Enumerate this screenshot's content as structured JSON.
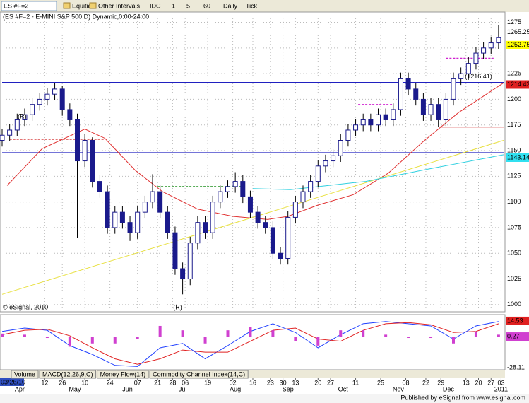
{
  "toolbar": {
    "symbol": "ES #F=2",
    "items": [
      "Equities",
      "Other Intervals",
      "IDC",
      "1",
      "5",
      "60",
      "Daily",
      "Tick"
    ]
  },
  "chart_data": [
    {
      "type": "candlestick",
      "title": "(ES #F=2 - E-MINI S&P 500,D) Dynamic,0:00-24:00",
      "watermark": "© eSignal, 2010",
      "start_label": "03/26/10",
      "xlim": [
        0,
        200
      ],
      "ylim": [
        993,
        1285
      ],
      "yticks": [
        1000,
        1025,
        1050,
        1075,
        1100,
        1125,
        1150,
        1175,
        1200,
        1225,
        1250,
        1275
      ],
      "xticks": [
        {
          "value": 17,
          "label": "12"
        },
        {
          "value": 24,
          "label": "26"
        },
        {
          "value": 33,
          "label": "10"
        },
        {
          "value": 43,
          "label": "24"
        },
        {
          "value": 54,
          "label": "07"
        },
        {
          "value": 62,
          "label": "21"
        },
        {
          "value": 68,
          "label": "28"
        },
        {
          "value": 73,
          "label": "06"
        },
        {
          "value": 82,
          "label": "19"
        },
        {
          "value": 92,
          "label": "02"
        },
        {
          "value": 100,
          "label": "16"
        },
        {
          "value": 107,
          "label": "23"
        },
        {
          "value": 112,
          "label": "30"
        },
        {
          "value": 117,
          "label": "13"
        },
        {
          "value": 126,
          "label": "20"
        },
        {
          "value": 131,
          "label": "27"
        },
        {
          "value": 141,
          "label": "11"
        },
        {
          "value": 151,
          "label": "25"
        },
        {
          "value": 161,
          "label": "08"
        },
        {
          "value": 169,
          "label": "22"
        },
        {
          "value": 175,
          "label": "29"
        },
        {
          "value": 185,
          "label": "13"
        },
        {
          "value": 190,
          "label": "20"
        },
        {
          "value": 195,
          "label": "27"
        },
        {
          "value": 199,
          "label": "03"
        }
      ],
      "xmonths": [
        {
          "value": 7,
          "label": "Apr"
        },
        {
          "value": 29,
          "label": "May"
        },
        {
          "value": 50,
          "label": "Jun"
        },
        {
          "value": 72,
          "label": "Jul"
        },
        {
          "value": 93,
          "label": "Aug"
        },
        {
          "value": 114,
          "label": "Sep"
        },
        {
          "value": 136,
          "label": "Oct"
        },
        {
          "value": 158,
          "label": "Nov"
        },
        {
          "value": 178,
          "label": "Dec"
        },
        {
          "value": 199,
          "label": "2011"
        }
      ],
      "grid": true,
      "up_color": "#ffffff",
      "down_color": "#1a1a8c",
      "outline_color": "#1a1a8c",
      "x": [
        0,
        3,
        6,
        9,
        12,
        15,
        18,
        21,
        24,
        27,
        30,
        33,
        36,
        39,
        42,
        45,
        48,
        51,
        54,
        57,
        60,
        63,
        66,
        69,
        72,
        75,
        78,
        81,
        84,
        87,
        90,
        93,
        96,
        99,
        102,
        105,
        108,
        111,
        114,
        117,
        120,
        123,
        126,
        129,
        132,
        135,
        138,
        141,
        144,
        147,
        150,
        153,
        156,
        159,
        162,
        165,
        168,
        171,
        174,
        177,
        180,
        183,
        186,
        189,
        192,
        195,
        198
      ],
      "ohlc": [
        [
          1160,
          1171,
          1154,
          1165
        ],
        [
          1165,
          1176,
          1159,
          1170
        ],
        [
          1170,
          1186,
          1164,
          1180
        ],
        [
          1180,
          1191,
          1174,
          1185
        ],
        [
          1185,
          1201,
          1179,
          1195
        ],
        [
          1195,
          1206,
          1189,
          1200
        ],
        [
          1200,
          1211,
          1194,
          1205
        ],
        [
          1205,
          1216,
          1199,
          1210
        ],
        [
          1210,
          1213,
          1184,
          1190
        ],
        [
          1190,
          1196,
          1174,
          1180
        ],
        [
          1180,
          1186,
          1065,
          1140
        ],
        [
          1140,
          1166,
          1134,
          1160
        ],
        [
          1160,
          1163,
          1114,
          1120
        ],
        [
          1120,
          1126,
          1104,
          1110
        ],
        [
          1110,
          1116,
          1069,
          1075
        ],
        [
          1075,
          1096,
          1069,
          1090
        ],
        [
          1090,
          1096,
          1074,
          1080
        ],
        [
          1080,
          1086,
          1062,
          1070
        ],
        [
          1070,
          1096,
          1064,
          1090
        ],
        [
          1090,
          1106,
          1084,
          1100
        ],
        [
          1100,
          1127,
          1094,
          1110
        ],
        [
          1110,
          1116,
          1084,
          1090
        ],
        [
          1090,
          1096,
          1064,
          1070
        ],
        [
          1070,
          1076,
          1029,
          1035
        ],
        [
          1035,
          1041,
          1010,
          1025
        ],
        [
          1025,
          1066,
          1019,
          1060
        ],
        [
          1060,
          1086,
          1054,
          1080
        ],
        [
          1080,
          1086,
          1064,
          1070
        ],
        [
          1070,
          1106,
          1064,
          1100
        ],
        [
          1100,
          1116,
          1094,
          1110
        ],
        [
          1110,
          1121,
          1104,
          1115
        ],
        [
          1115,
          1129,
          1109,
          1120
        ],
        [
          1120,
          1126,
          1099,
          1105
        ],
        [
          1105,
          1111,
          1084,
          1090
        ],
        [
          1090,
          1096,
          1074,
          1080
        ],
        [
          1080,
          1086,
          1069,
          1075
        ],
        [
          1075,
          1081,
          1044,
          1050
        ],
        [
          1050,
          1056,
          1039,
          1045
        ],
        [
          1045,
          1091,
          1039,
          1085
        ],
        [
          1085,
          1106,
          1079,
          1100
        ],
        [
          1100,
          1116,
          1094,
          1110
        ],
        [
          1110,
          1126,
          1104,
          1120
        ],
        [
          1120,
          1141,
          1114,
          1135
        ],
        [
          1135,
          1146,
          1129,
          1140
        ],
        [
          1140,
          1151,
          1134,
          1145
        ],
        [
          1145,
          1166,
          1139,
          1160
        ],
        [
          1160,
          1176,
          1154,
          1170
        ],
        [
          1170,
          1181,
          1164,
          1175
        ],
        [
          1175,
          1186,
          1169,
          1180
        ],
        [
          1180,
          1186,
          1169,
          1175
        ],
        [
          1175,
          1191,
          1169,
          1185
        ],
        [
          1185,
          1191,
          1174,
          1180
        ],
        [
          1180,
          1196,
          1174,
          1190
        ],
        [
          1190,
          1226,
          1184,
          1220
        ],
        [
          1220,
          1226,
          1204,
          1210
        ],
        [
          1210,
          1216,
          1194,
          1200
        ],
        [
          1200,
          1206,
          1179,
          1185
        ],
        [
          1185,
          1201,
          1179,
          1195
        ],
        [
          1195,
          1201,
          1173,
          1180
        ],
        [
          1180,
          1206,
          1174,
          1200
        ],
        [
          1200,
          1226,
          1194,
          1220
        ],
        [
          1220,
          1231,
          1214,
          1225
        ],
        [
          1225,
          1241,
          1219,
          1235
        ],
        [
          1235,
          1251,
          1229,
          1245
        ],
        [
          1245,
          1256,
          1239,
          1250
        ],
        [
          1250,
          1261,
          1244,
          1255
        ],
        [
          1255,
          1272,
          1249,
          1260
        ]
      ],
      "overlays": [
        {
          "color": "#e03030",
          "x": [
            2,
            16,
            33,
            41,
            53,
            64,
            78,
            92,
            106,
            114,
            126,
            140,
            154,
            168,
            182,
            200
          ],
          "values": [
            1116,
            1152,
            1171,
            1162,
            1131,
            1110,
            1093,
            1086,
            1083,
            1086,
            1097,
            1107,
            1128,
            1159,
            1187,
            1216
          ]
        },
        {
          "color": "#e8e040",
          "x": [
            0,
            200
          ],
          "values": [
            1010,
            1160
          ]
        },
        {
          "color": "#30d0e0",
          "x": [
            100,
            115,
            145,
            170,
            200
          ],
          "values": [
            1113,
            1112,
            1120,
            1132,
            1146
          ]
        }
      ],
      "levels": [
        {
          "value": 1216.41,
          "from": 0,
          "to": 200,
          "color": "#2020c0",
          "dash": false
        },
        {
          "value": 1148,
          "from": 0,
          "to": 200,
          "color": "#2020c0",
          "dash": false
        },
        {
          "value": 1173,
          "from": 175,
          "to": 200,
          "color": "#d02020",
          "dash": false
        },
        {
          "value": 1161,
          "from": 3,
          "to": 41,
          "color": "#d02020",
          "dash": true
        },
        {
          "value": 1115,
          "from": 62,
          "to": 96,
          "color": "#209020",
          "dash": true
        },
        {
          "value": 1195,
          "from": 142,
          "to": 156,
          "color": "#d020d0",
          "dash": true
        },
        {
          "value": 1240,
          "from": 177,
          "to": 196,
          "color": "#d020d0",
          "dash": true
        }
      ],
      "price_tags": [
        {
          "value": 1265.25,
          "label": "1265.25",
          "color": "#ffffff",
          "text_color": "#999999"
        },
        {
          "value": 1252.75,
          "label": "1252.75",
          "color": "#ffff00",
          "text_color": "#999999"
        },
        {
          "value": 1214.42,
          "label": "1214.42",
          "color": "#e02020",
          "text_color": "#ffffff"
        },
        {
          "value": 1143.14,
          "label": "1143.14",
          "color": "#30e0f0",
          "text_color": "#ffffff"
        }
      ],
      "annotations": [
        {
          "text": "(R)",
          "x": 8,
          "y": 1183
        },
        {
          "text": "(R)",
          "x": 70,
          "y": 997
        },
        {
          "text": "(1216.41)",
          "x": 190,
          "y": 1222
        }
      ]
    },
    {
      "type": "macd",
      "xlim": [
        0,
        200
      ],
      "ylim": [
        -30,
        19
      ],
      "x": [
        0,
        9,
        18,
        27,
        36,
        45,
        54,
        63,
        72,
        81,
        90,
        99,
        108,
        117,
        126,
        135,
        144,
        153,
        162,
        171,
        180,
        189,
        198
      ],
      "series": [
        {
          "color": "#2040ff",
          "kind": "line",
          "values": [
            5,
            8,
            6,
            -8,
            -16,
            -26,
            -27,
            -10,
            -6,
            -20,
            -8,
            5,
            12,
            4,
            -10,
            2,
            12,
            14,
            12,
            10,
            -2,
            10,
            14
          ]
        },
        {
          "color": "#e02020",
          "kind": "line",
          "values": [
            2,
            6,
            7,
            1,
            -10,
            -20,
            -25,
            -20,
            -12,
            -14,
            -14,
            -4,
            6,
            8,
            -2,
            -4,
            6,
            12,
            13,
            11,
            4,
            5,
            12
          ]
        },
        {
          "color": "#d040d0",
          "kind": "bar",
          "values": [
            3,
            2,
            -1,
            -9,
            -6,
            -6,
            -2,
            10,
            6,
            -6,
            6,
            9,
            6,
            -4,
            -8,
            6,
            6,
            2,
            -1,
            -1,
            -6,
            5,
            2
          ]
        }
      ],
      "price_tags": [
        {
          "value": 14.53,
          "label": "14.53",
          "color": "#e02020",
          "text_color": "#ffffff"
        },
        {
          "value": 0.27,
          "label": "0.27",
          "color": "#d040d0",
          "text_color": "#ffffff"
        },
        {
          "value": -28.11,
          "label": "-28.11",
          "color": "#ffffff",
          "text_color": "#555555"
        }
      ]
    }
  ],
  "tabs": [
    "Volume",
    "MACD(12,26,9,C)",
    "Money Flow(14)",
    "Commodity Channel Index(14,C)"
  ],
  "footer": "Published by eSignal from www.esignal.com"
}
